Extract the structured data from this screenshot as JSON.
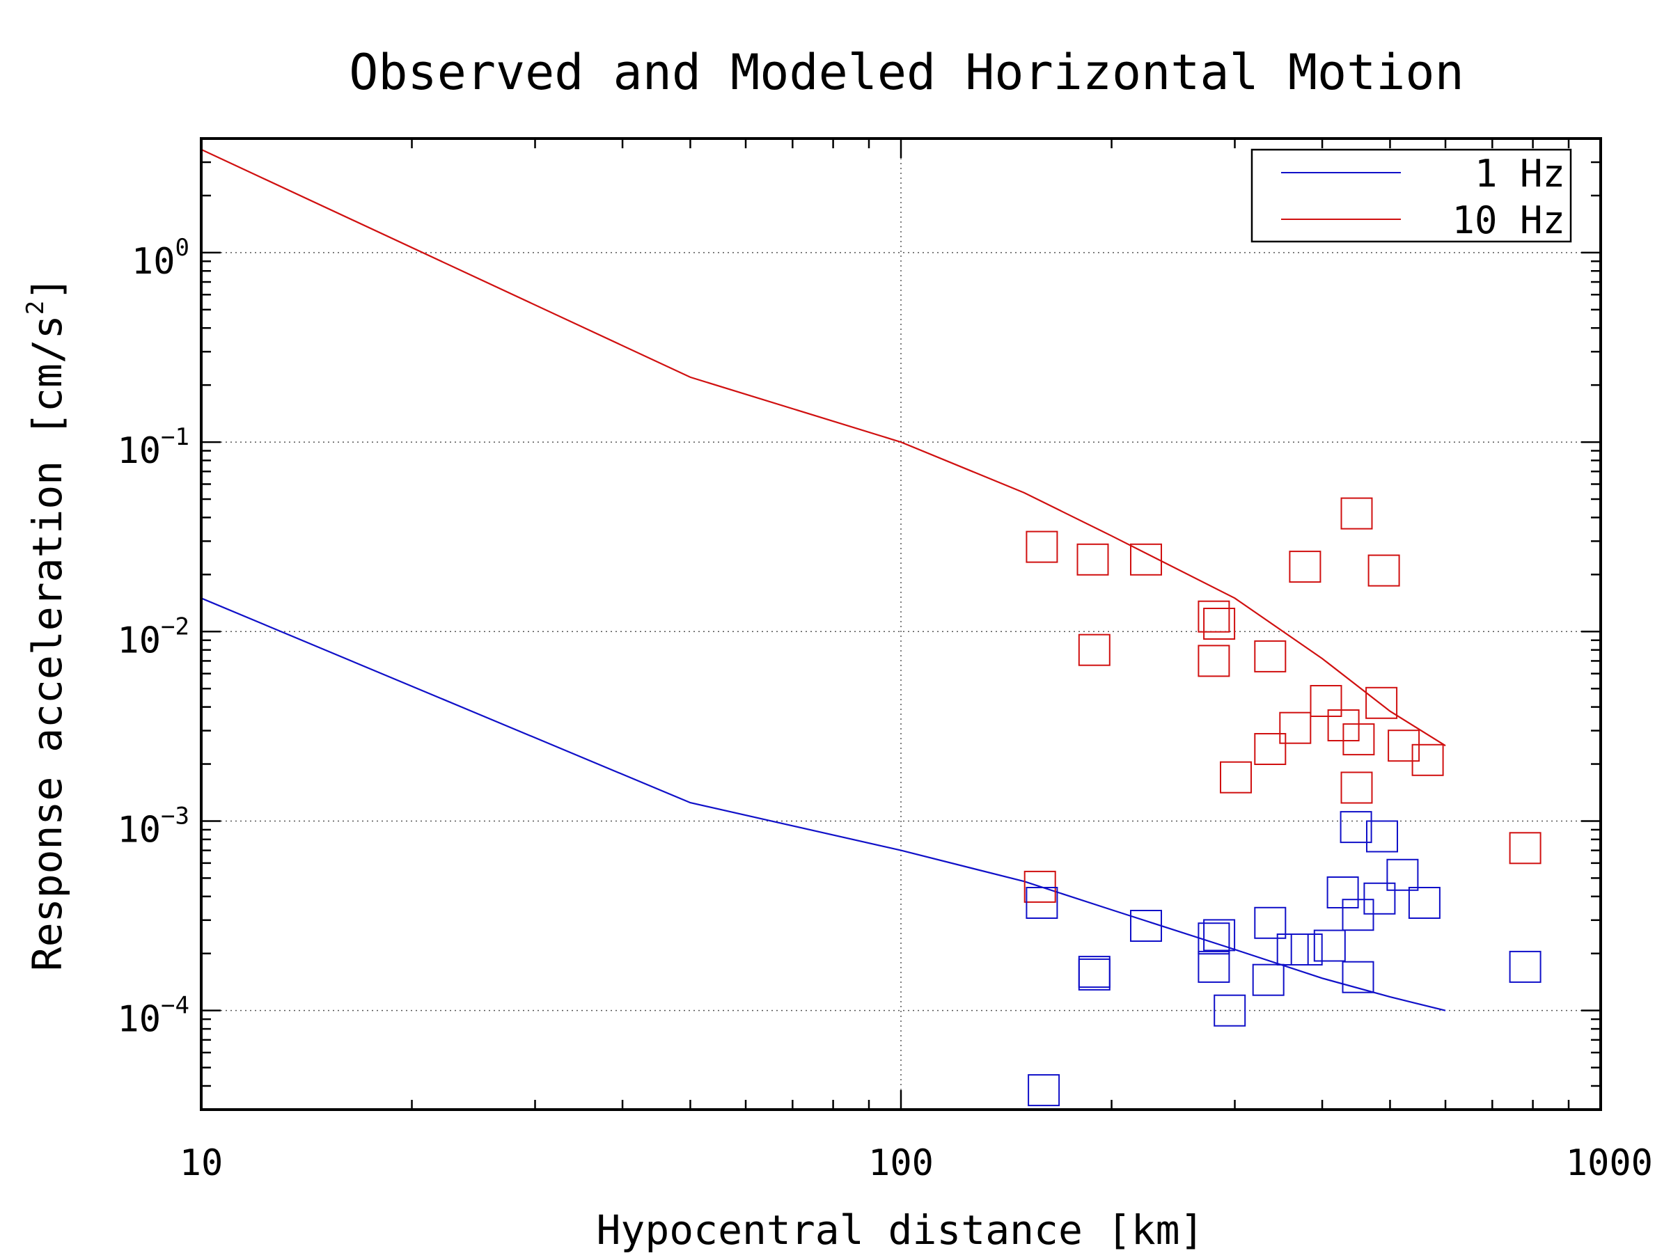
{
  "chart_data": {
    "type": "scatter",
    "title": "Observed and Modeled Horizontal Motion",
    "xlabel": "Hypocentral distance [km]",
    "ylabel": {
      "base": "Response acceleration [cm/s",
      "sup": "2",
      "close": "]"
    },
    "xscale": "log",
    "yscale": "log",
    "xlim": [
      10,
      1000
    ],
    "ylim": [
      3e-05,
      4
    ],
    "x_ticks": [
      {
        "value": 10,
        "label": "10"
      },
      {
        "value": 100,
        "label": "100"
      },
      {
        "value": 1000,
        "label": "1000"
      }
    ],
    "y_ticks": [
      {
        "value": 0.0001,
        "base": "10",
        "exp": "−4"
      },
      {
        "value": 0.001,
        "base": "10",
        "exp": "−3"
      },
      {
        "value": 0.01,
        "base": "10",
        "exp": "−2"
      },
      {
        "value": 0.1,
        "base": "10",
        "exp": "−1"
      },
      {
        "value": 1,
        "base": "10",
        "exp": "0"
      }
    ],
    "grid": "dotted at decades",
    "legend": {
      "position": "top-right",
      "entries": [
        {
          "label": "1 Hz",
          "color": "#1010c8"
        },
        {
          "label": "10 Hz",
          "color": "#d01010"
        }
      ]
    },
    "model_lines": [
      {
        "color": "#1010c8",
        "x": [
          10,
          50,
          100,
          150,
          200,
          300,
          400,
          500,
          600
        ],
        "y": [
          0.015,
          0.00125,
          0.0007,
          0.00048,
          0.00034,
          0.00021,
          0.000148,
          0.000118,
          0.0001
        ]
      },
      {
        "color": "#d01010",
        "x": [
          10,
          50,
          100,
          150,
          200,
          300,
          400,
          500,
          600
        ],
        "y": [
          3.5,
          0.22,
          0.1,
          0.054,
          0.032,
          0.015,
          0.0072,
          0.0038,
          0.0025
        ]
      }
    ],
    "observed": [
      {
        "color": "#d01010",
        "points": [
          [
            159,
            0.028
          ],
          [
            158,
            0.00045
          ],
          [
            188,
            0.024
          ],
          [
            224,
            0.024
          ],
          [
            189,
            0.008
          ],
          [
            280,
            0.012
          ],
          [
            285,
            0.011
          ],
          [
            280,
            0.007
          ],
          [
            301,
            0.0017
          ],
          [
            337,
            0.0074
          ],
          [
            337,
            0.0024
          ],
          [
            378,
            0.022
          ],
          [
            366,
            0.0031
          ],
          [
            405,
            0.0043
          ],
          [
            429,
            0.0032
          ],
          [
            448,
            0.042
          ],
          [
            451,
            0.0027
          ],
          [
            448,
            0.0015
          ],
          [
            490,
            0.021
          ],
          [
            486,
            0.0042
          ],
          [
            523,
            0.0025
          ],
          [
            566,
            0.0021
          ],
          [
            780,
            0.00072
          ]
        ]
      },
      {
        "color": "#1010c8",
        "points": [
          [
            159,
            0.00037
          ],
          [
            160,
            3.8e-05
          ],
          [
            189,
            0.00016
          ],
          [
            189,
            0.000155
          ],
          [
            224,
            0.00028
          ],
          [
            285,
            0.00025
          ],
          [
            280,
            0.00024
          ],
          [
            280,
            0.00017
          ],
          [
            295,
            0.0001
          ],
          [
            337,
            0.00029
          ],
          [
            335,
            0.000145
          ],
          [
            363,
            0.00021
          ],
          [
            380,
            0.00021
          ],
          [
            410,
            0.00022
          ],
          [
            428,
            0.00042
          ],
          [
            447,
            0.00093
          ],
          [
            450,
            0.00032
          ],
          [
            450,
            0.00015
          ],
          [
            487,
            0.00083
          ],
          [
            483,
            0.00039
          ],
          [
            521,
            0.00052
          ],
          [
            560,
            0.00037
          ],
          [
            780,
            0.00017
          ]
        ]
      }
    ]
  }
}
